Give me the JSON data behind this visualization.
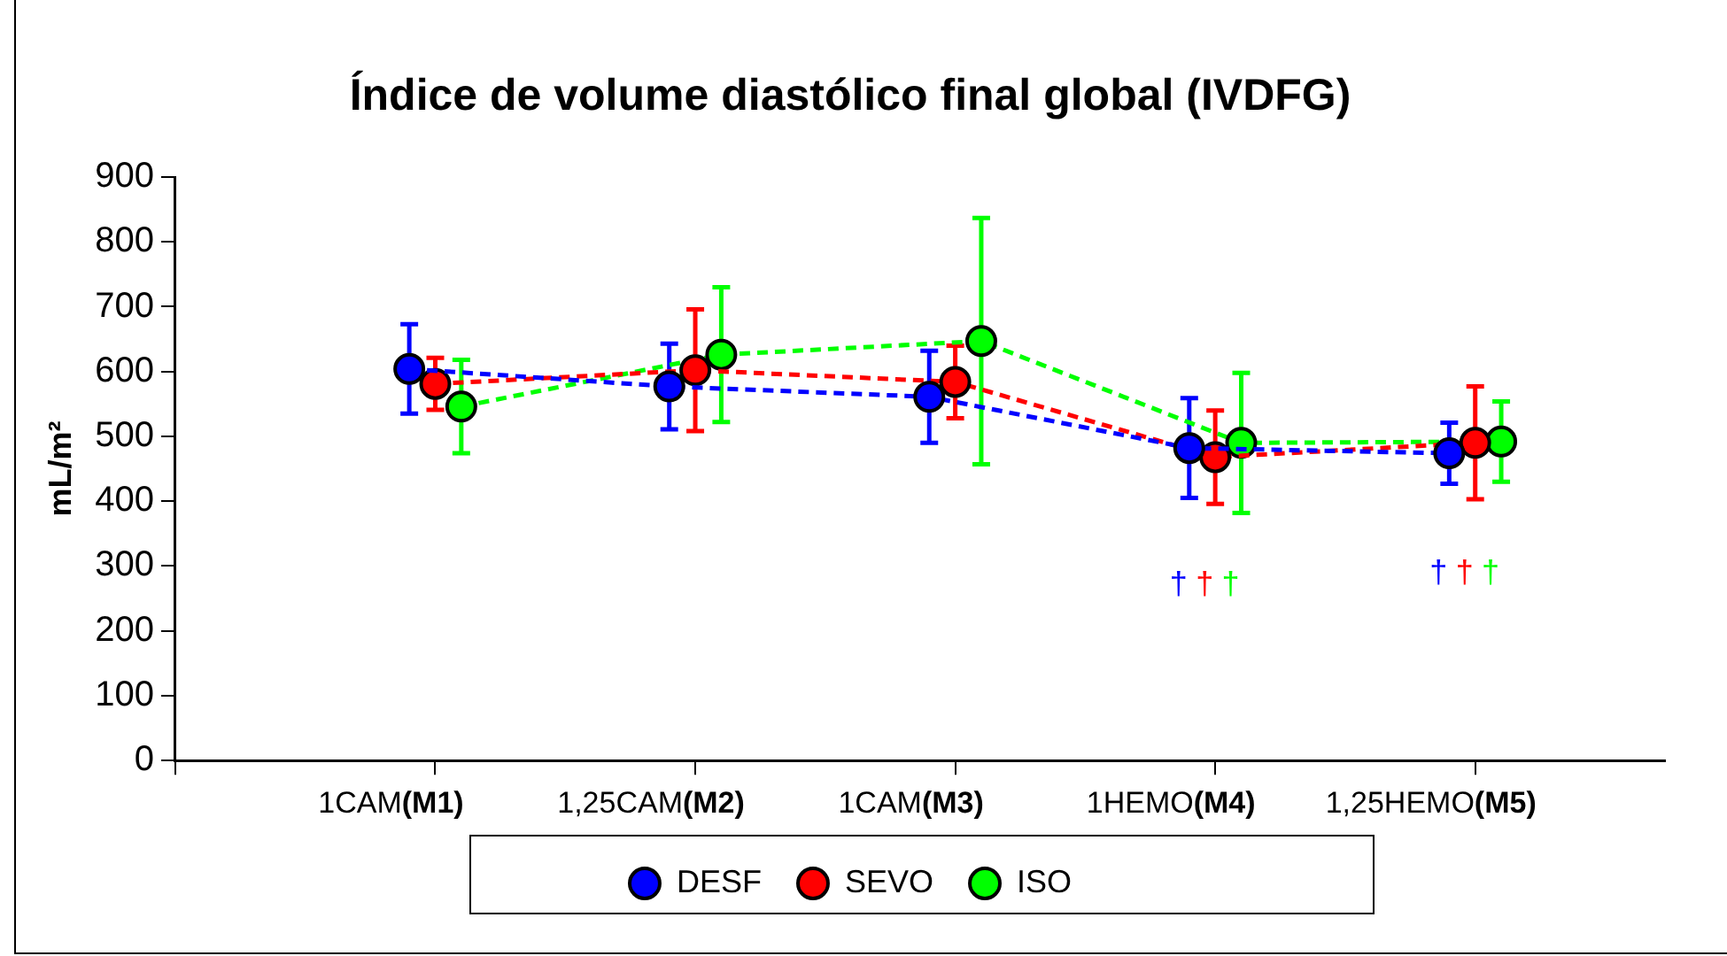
{
  "chart_data": {
    "type": "line",
    "title": "Índice de volume diastólico final global (IVDFG)",
    "ylabel": "mL/m²",
    "categories": [
      "1CAM(M1)",
      "1,25CAM(M2)",
      "1CAM(M3)",
      "1HEMO(M4)",
      "1,25HEMO(M5)"
    ],
    "series": [
      {
        "name": "DESF",
        "color": "#0000ff",
        "values": [
          604,
          577,
          561,
          482,
          474
        ],
        "errors": [
          69,
          66,
          71,
          77,
          47
        ]
      },
      {
        "name": "SEVO",
        "color": "#ff0000",
        "values": [
          581,
          602,
          584,
          468,
          490
        ],
        "errors": [
          40,
          94,
          56,
          72,
          87
        ]
      },
      {
        "name": "ISO",
        "color": "#00ff00",
        "values": [
          546,
          626,
          647,
          490,
          492
        ],
        "errors": [
          72,
          104,
          190,
          108,
          62
        ]
      }
    ],
    "ylim": [
      0,
      900
    ],
    "yticks": [
      0,
      100,
      200,
      300,
      400,
      500,
      600,
      700,
      800,
      900
    ],
    "grid": false,
    "legend": "bottom",
    "marker": "circle",
    "line_style": "dashed",
    "annotations": [
      "†",
      "†",
      "†",
      "†",
      "†",
      "†"
    ]
  }
}
